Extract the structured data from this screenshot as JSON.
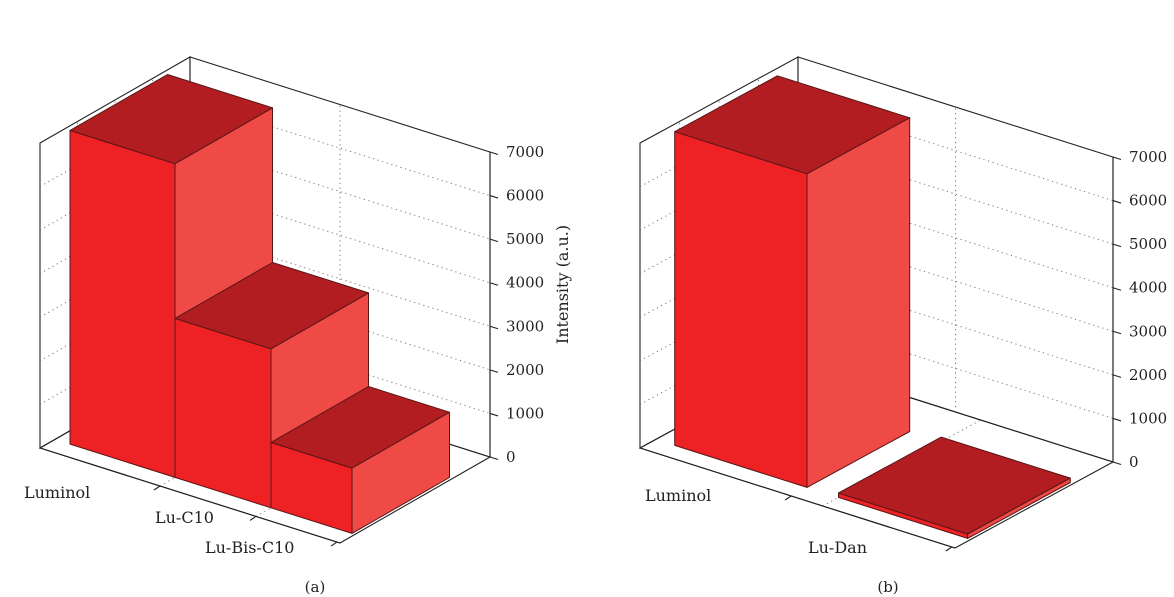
{
  "chart_data": [
    {
      "type": "bar",
      "panel_label": "(a)",
      "categories": [
        "Luminol",
        "Lu-C10",
        "Lu-Bis-C10"
      ],
      "values": [
        7200,
        3650,
        1500
      ],
      "ylabel": "Intensity (a.u.)",
      "ylim": [
        0,
        7000
      ],
      "yticks": [
        0,
        1000,
        2000,
        3000,
        4000,
        5000,
        6000,
        7000
      ],
      "grid": true,
      "projection": "3d",
      "colors": {
        "front": "#ee2124",
        "side": "#ef4a45",
        "top": "#b21d22"
      }
    },
    {
      "type": "bar",
      "panel_label": "(b)",
      "categories": [
        "Luminol",
        "Lu-Dan"
      ],
      "values": [
        7200,
        100
      ],
      "ylabel": "Intensity (a.u.)",
      "ylim": [
        0,
        7000
      ],
      "yticks": [
        0,
        1000,
        2000,
        3000,
        4000,
        5000,
        6000,
        7000
      ],
      "grid": true,
      "projection": "3d",
      "colors": {
        "front": "#ee2124",
        "side": "#ef4a45",
        "top": "#b21d22"
      }
    }
  ]
}
